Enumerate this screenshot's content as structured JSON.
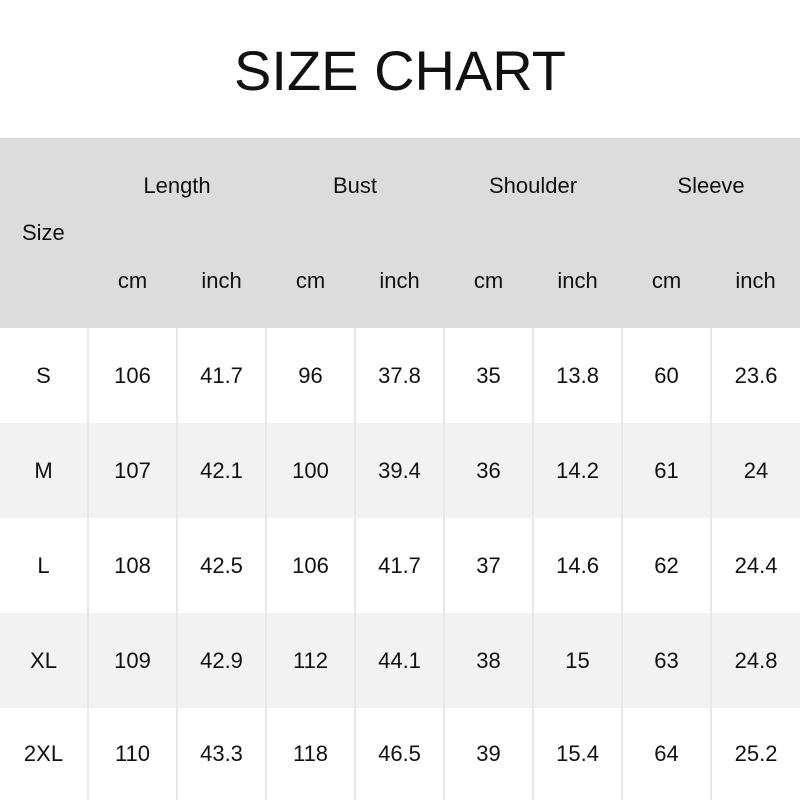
{
  "title": "SIZE CHART",
  "header": {
    "size": "Size",
    "groups": [
      "Length",
      "Bust",
      "Shoulder",
      "Sleeve"
    ],
    "units": [
      "cm",
      "inch",
      "cm",
      "inch",
      "cm",
      "inch",
      "cm",
      "inch"
    ]
  },
  "rows": [
    [
      "S",
      "106",
      "41.7",
      "96",
      "37.8",
      "35",
      "13.8",
      "60",
      "23.6"
    ],
    [
      "M",
      "107",
      "42.1",
      "100",
      "39.4",
      "36",
      "14.2",
      "61",
      "24"
    ],
    [
      "L",
      "108",
      "42.5",
      "106",
      "41.7",
      "37",
      "14.6",
      "62",
      "24.4"
    ],
    [
      "XL",
      "109",
      "42.9",
      "112",
      "44.1",
      "38",
      "15",
      "63",
      "24.8"
    ],
    [
      "2XL",
      "110",
      "43.3",
      "118",
      "46.5",
      "39",
      "15.4",
      "64",
      "25.2"
    ]
  ]
}
